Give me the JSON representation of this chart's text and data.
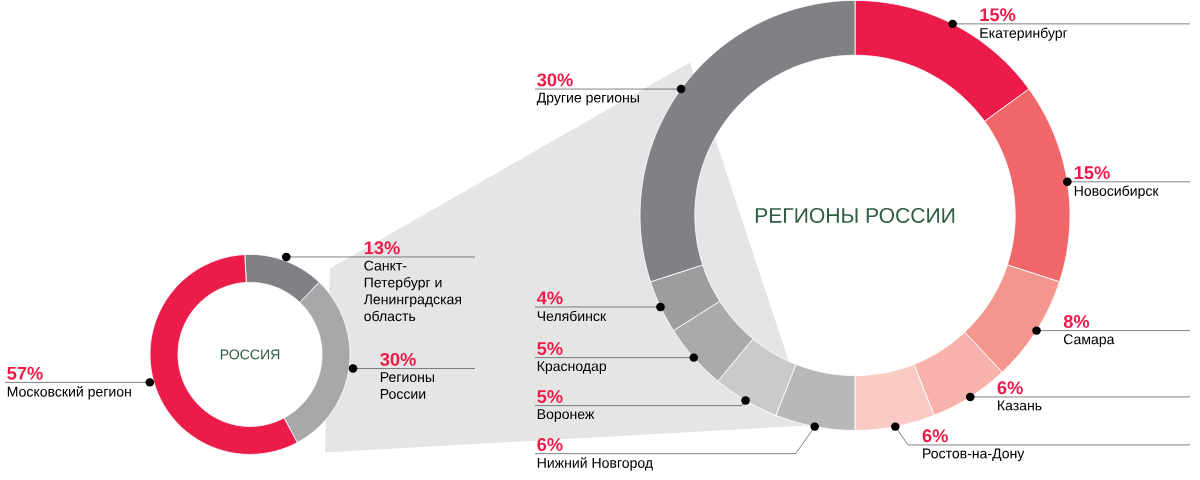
{
  "chart_data": [
    {
      "type": "donut",
      "title": "РОССИЯ",
      "categories": [
        "Санкт-Петербург и Ленинградская область",
        "Регионы России",
        "Московский регион"
      ],
      "values": [
        13,
        30,
        57
      ],
      "colors": [
        "#808184",
        "#a7a8aa",
        "#ec1c4a"
      ],
      "value_labels": [
        "13%",
        "30%",
        "57%"
      ]
    },
    {
      "type": "donut",
      "title": "РЕГИОНЫ РОССИИ",
      "categories": [
        "Екатеринбург",
        "Новосибирск",
        "Самара",
        "Казань",
        "Ростов-на-Дону",
        "Нижний  Новгород",
        "Воронеж",
        "Краснодар",
        "Челябинск",
        "Другие регионы"
      ],
      "values": [
        15,
        15,
        8,
        6,
        6,
        6,
        5,
        5,
        4,
        30
      ],
      "colors": [
        "#ec1c4a",
        "#f0676a",
        "#f4958e",
        "#f7b3ab",
        "#f9cbc4",
        "#b7b8ba",
        "#c9cacc",
        "#a9aaac",
        "#9c9d9f",
        "#808184"
      ],
      "value_labels": [
        "15%",
        "15%",
        "8%",
        "6%",
        "6%",
        "6%",
        "5%",
        "5%",
        "4%",
        "30%"
      ]
    }
  ]
}
